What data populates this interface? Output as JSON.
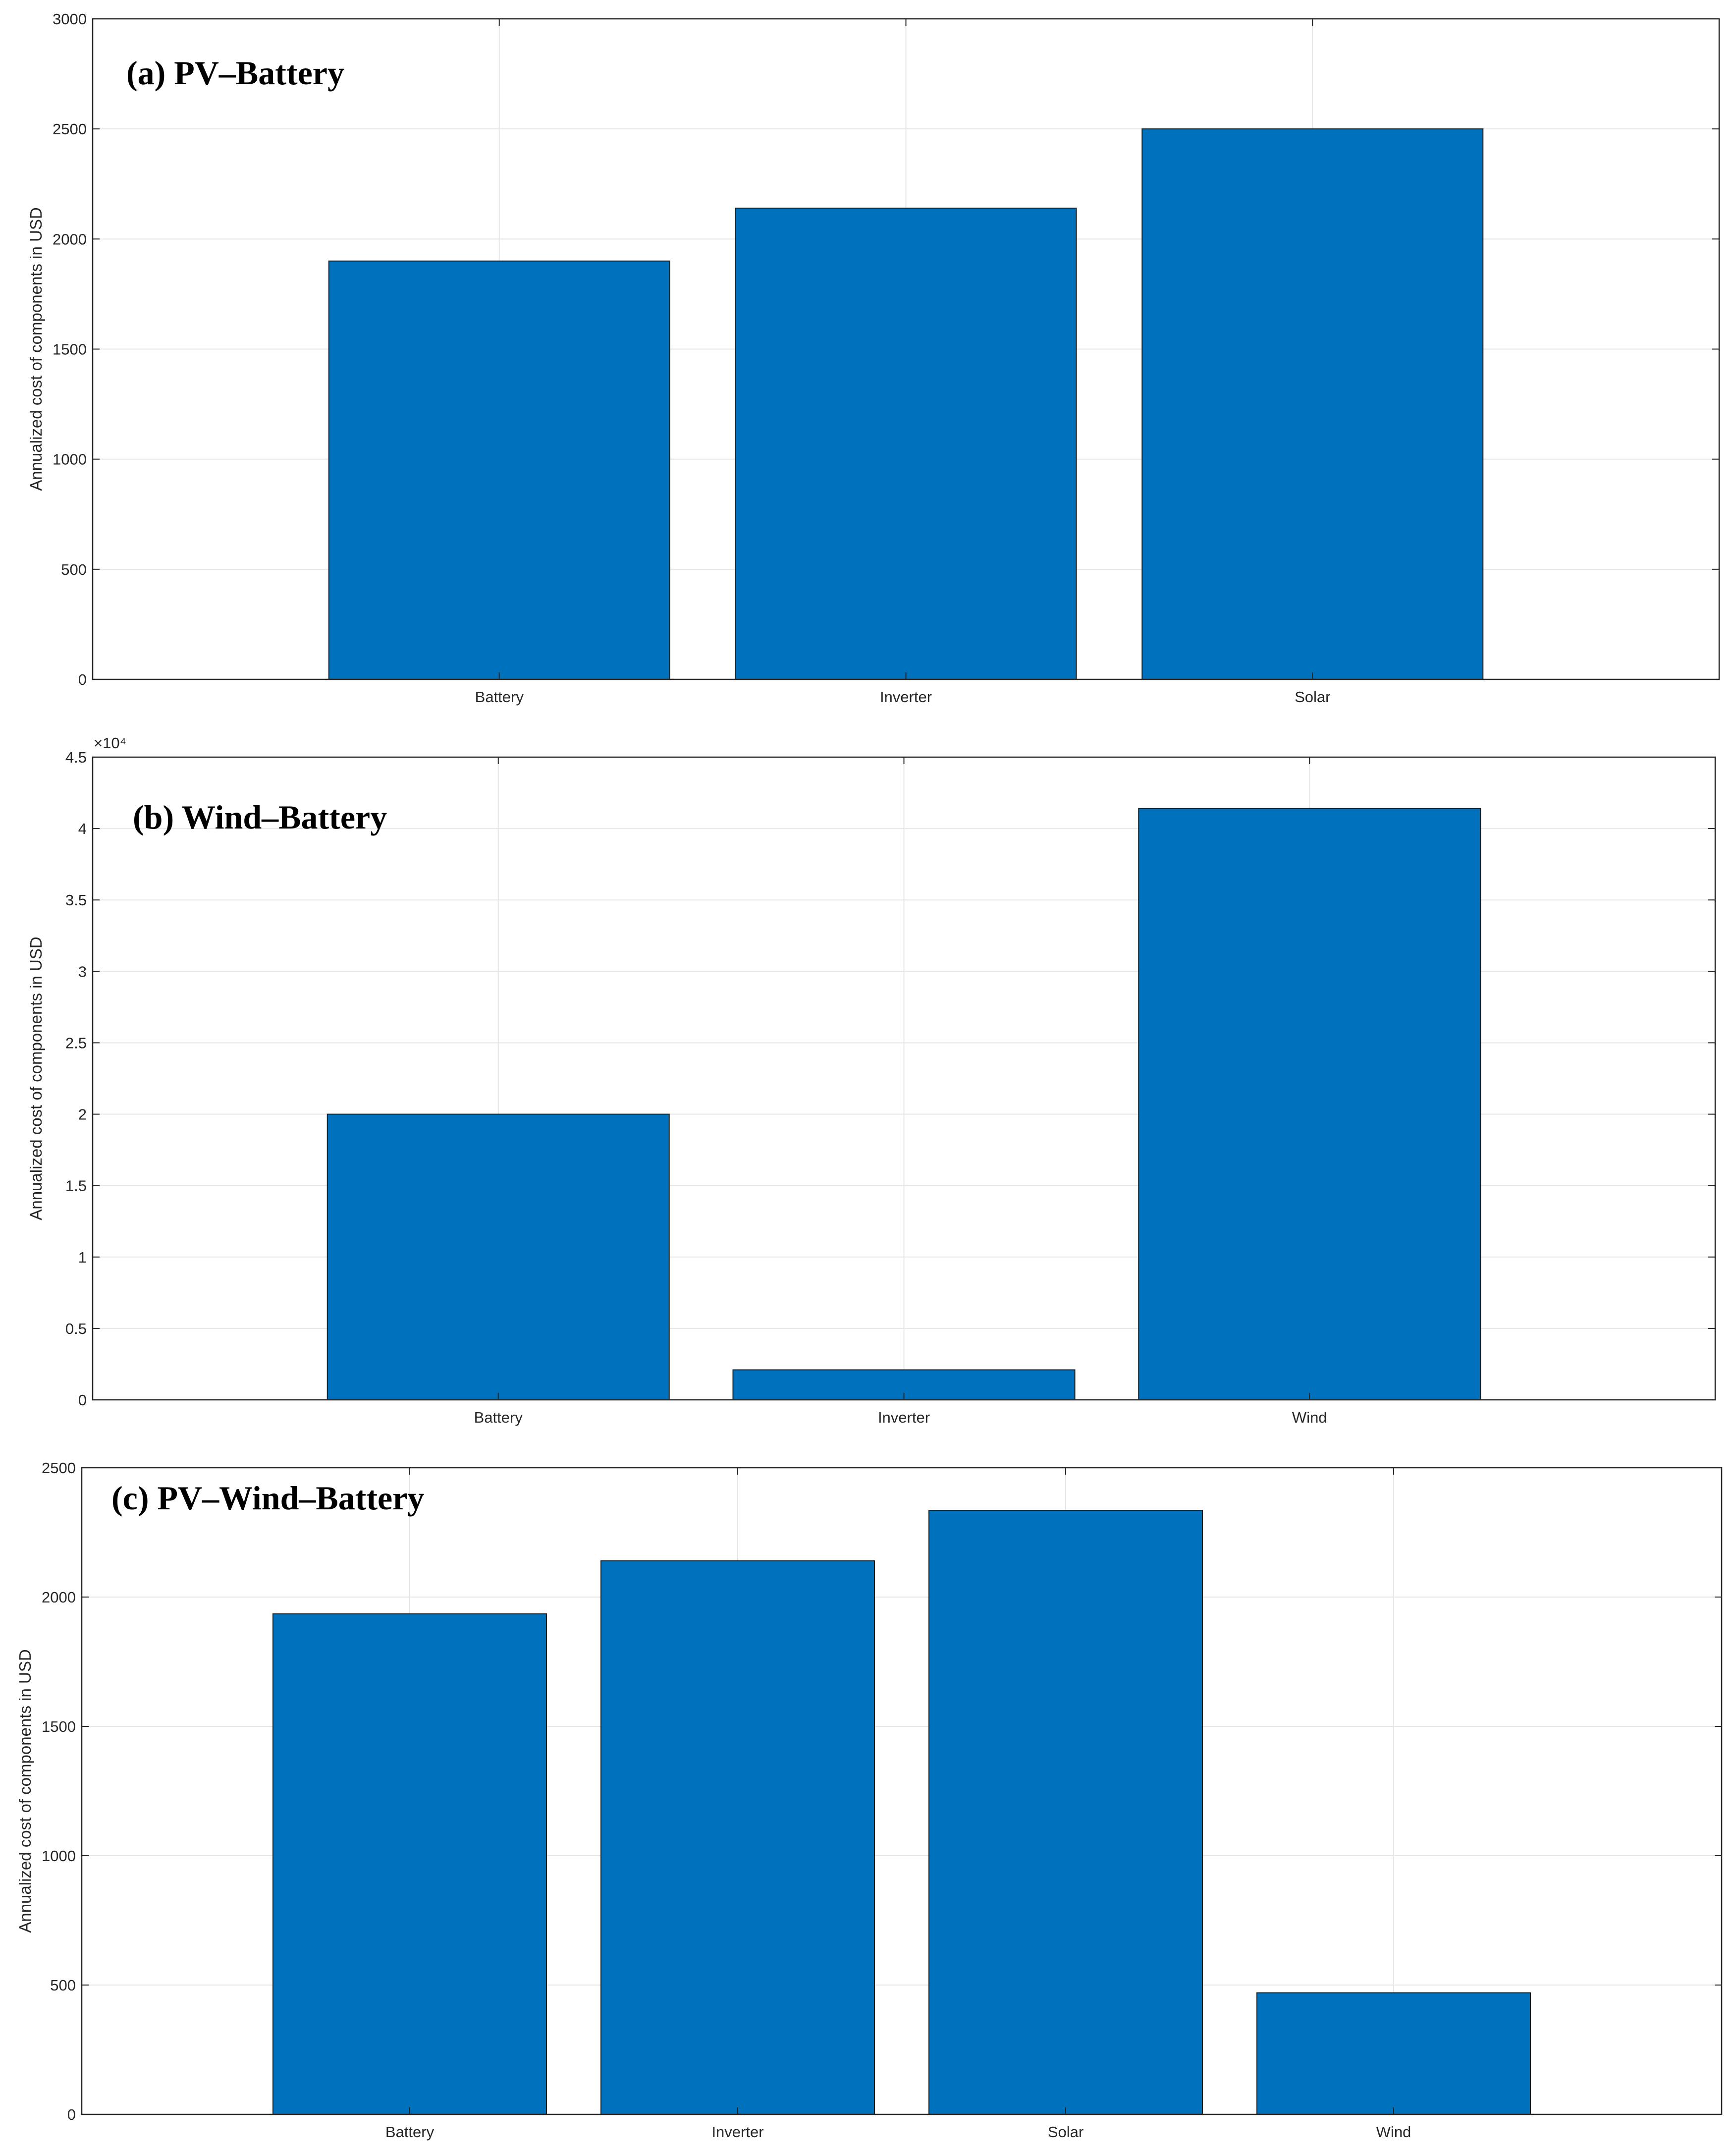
{
  "chart_data": [
    {
      "type": "bar",
      "title": "(a) PV–Battery",
      "ylabel": "Annualized cost of components in USD",
      "categories": [
        "Battery",
        "Inverter",
        "Solar"
      ],
      "values": [
        1900,
        2140,
        2500
      ],
      "ylim": [
        0,
        3000
      ],
      "yticks": [
        0,
        500,
        1000,
        1500,
        2000,
        2500,
        3000
      ],
      "ytick_labels": [
        "0",
        "500",
        "1000",
        "1500",
        "2000",
        "2500",
        "3000"
      ],
      "exponent_label": "",
      "bar_color": "#0072BD",
      "grid": true
    },
    {
      "type": "bar",
      "title": "(b) Wind–Battery",
      "ylabel": "Annualized cost of components in USD",
      "categories": [
        "Battery",
        "Inverter",
        "Wind"
      ],
      "values": [
        20000,
        2100,
        41400
      ],
      "ylim": [
        0,
        45000
      ],
      "yticks": [
        0,
        5000,
        10000,
        15000,
        20000,
        25000,
        30000,
        35000,
        40000,
        45000
      ],
      "ytick_labels": [
        "0",
        "0.5",
        "1",
        "1.5",
        "2",
        "2.5",
        "3",
        "3.5",
        "4",
        "4.5"
      ],
      "exponent_label": "×10⁴",
      "bar_color": "#0072BD",
      "grid": true
    },
    {
      "type": "bar",
      "title": "(c) PV–Wind–Battery",
      "ylabel": "Annualized cost of components in USD",
      "categories": [
        "Battery",
        "Inverter",
        "Solar",
        "Wind"
      ],
      "values": [
        1935,
        2140,
        2335,
        470
      ],
      "ylim": [
        0,
        2500
      ],
      "yticks": [
        0,
        500,
        1000,
        1500,
        2000,
        2500
      ],
      "ytick_labels": [
        "0",
        "500",
        "1000",
        "1500",
        "2000",
        "2500"
      ],
      "exponent_label": "",
      "bar_color": "#0072BD",
      "grid": true
    }
  ]
}
